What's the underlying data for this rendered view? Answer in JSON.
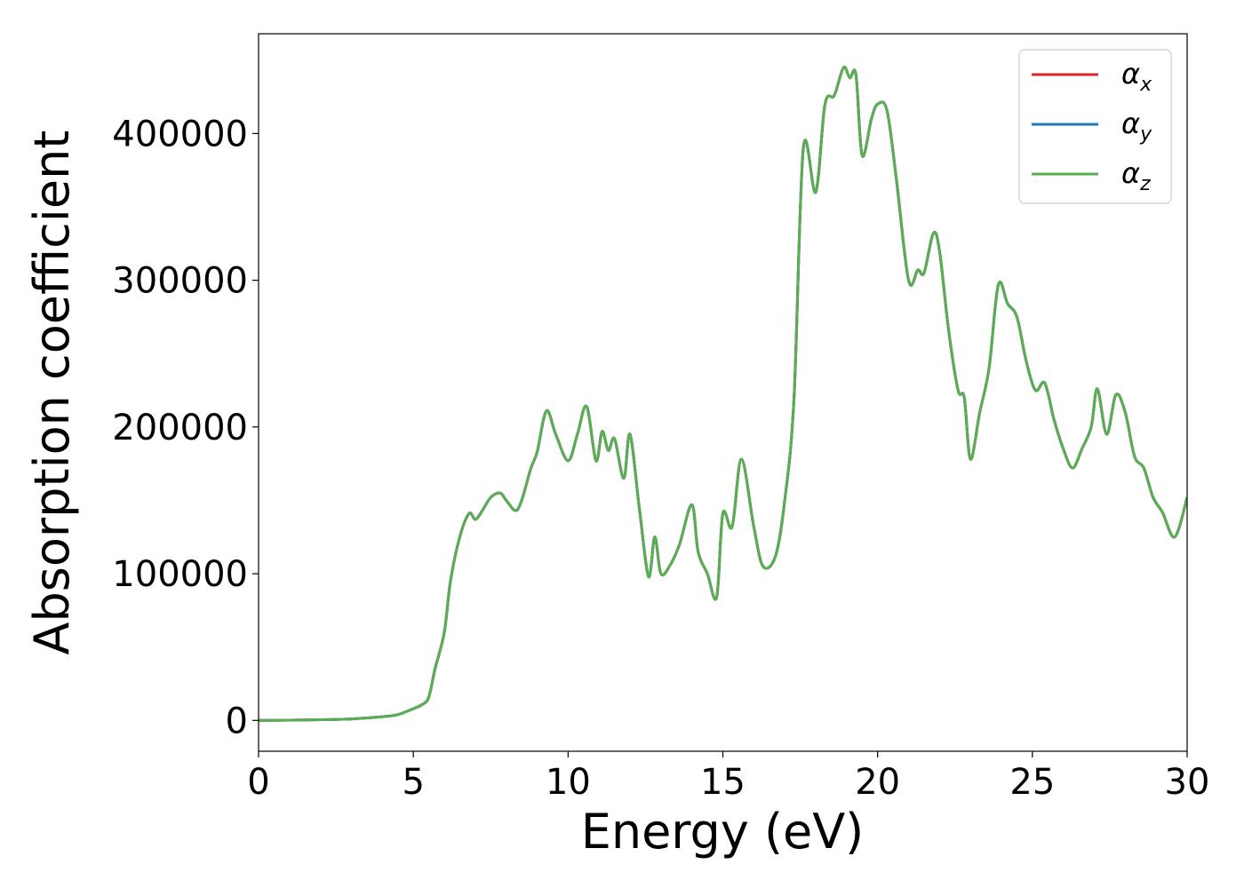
{
  "chart_data": {
    "type": "line",
    "xlabel": "Energy (eV)",
    "ylabel": "Absorption coefficient",
    "xlim": [
      0,
      30
    ],
    "ylim": [
      -21000,
      468000
    ],
    "xticks": [
      0,
      5,
      10,
      15,
      20,
      25,
      30
    ],
    "xtick_labels": [
      "0",
      "5",
      "10",
      "15",
      "20",
      "25",
      "30"
    ],
    "yticks": [
      0,
      100000,
      200000,
      300000,
      400000
    ],
    "ytick_labels": [
      "0",
      "100000",
      "200000",
      "300000",
      "400000"
    ],
    "grid": false,
    "legend_position": "top-right",
    "series": [
      {
        "name": "α_x",
        "legend_base": "α",
        "legend_sub": "x",
        "color": "#d62728",
        "x": [
          0,
          1,
          2,
          3,
          4,
          4.5,
          5,
          5.3,
          5.5,
          5.7,
          6,
          6.2,
          6.5,
          6.8,
          7,
          7.2,
          7.5,
          7.8,
          8,
          8.3,
          8.5,
          8.8,
          9,
          9.3,
          9.6,
          10,
          10.3,
          10.6,
          10.9,
          11.1,
          11.3,
          11.5,
          11.8,
          12,
          12.3,
          12.6,
          12.8,
          13,
          13.3,
          13.6,
          14,
          14.2,
          14.5,
          14.8,
          15,
          15.3,
          15.6,
          16,
          16.3,
          16.7,
          17,
          17.3,
          17.6,
          18,
          18.3,
          18.6,
          18.9,
          19.1,
          19.3,
          19.5,
          19.8,
          20,
          20.3,
          20.6,
          21,
          21.3,
          21.5,
          21.8,
          22,
          22.3,
          22.6,
          22.8,
          23,
          23.3,
          23.6,
          23.9,
          24.2,
          24.5,
          24.8,
          25.1,
          25.4,
          25.7,
          26,
          26.3,
          26.6,
          26.9,
          27.1,
          27.4,
          27.7,
          28,
          28.3,
          28.6,
          28.9,
          29.2,
          29.6,
          30
        ],
        "y": [
          0,
          200,
          500,
          1000,
          2500,
          4000,
          8000,
          11000,
          16000,
          35000,
          60000,
          95000,
          125000,
          141000,
          137000,
          142000,
          152000,
          155000,
          150000,
          143000,
          150000,
          172000,
          183000,
          211000,
          195000,
          177000,
          195000,
          214000,
          177000,
          197000,
          184000,
          192000,
          165000,
          195000,
          145000,
          98000,
          125000,
          100000,
          106000,
          120000,
          147000,
          115000,
          100000,
          84000,
          141000,
          132000,
          178000,
          132000,
          105000,
          112000,
          150000,
          220000,
          390000,
          360000,
          420000,
          426000,
          445000,
          438000,
          440000,
          385000,
          410000,
          420000,
          416000,
          370000,
          300000,
          307000,
          305000,
          332000,
          320000,
          265000,
          225000,
          220000,
          178000,
          210000,
          240000,
          297000,
          284000,
          275000,
          245000,
          225000,
          230000,
          205000,
          185000,
          172000,
          185000,
          200000,
          226000,
          195000,
          222000,
          210000,
          180000,
          172000,
          152000,
          142000,
          125000,
          152000
        ]
      },
      {
        "name": "α_y",
        "legend_base": "α",
        "legend_sub": "y",
        "color": "#1f77b4",
        "x": [
          0,
          1,
          2,
          3,
          4,
          4.5,
          5,
          5.3,
          5.5,
          5.7,
          6,
          6.2,
          6.5,
          6.8,
          7,
          7.2,
          7.5,
          7.8,
          8,
          8.3,
          8.5,
          8.8,
          9,
          9.3,
          9.6,
          10,
          10.3,
          10.6,
          10.9,
          11.1,
          11.3,
          11.5,
          11.8,
          12,
          12.3,
          12.6,
          12.8,
          13,
          13.3,
          13.6,
          14,
          14.2,
          14.5,
          14.8,
          15,
          15.3,
          15.6,
          16,
          16.3,
          16.7,
          17,
          17.3,
          17.6,
          18,
          18.3,
          18.6,
          18.9,
          19.1,
          19.3,
          19.5,
          19.8,
          20,
          20.3,
          20.6,
          21,
          21.3,
          21.5,
          21.8,
          22,
          22.3,
          22.6,
          22.8,
          23,
          23.3,
          23.6,
          23.9,
          24.2,
          24.5,
          24.8,
          25.1,
          25.4,
          25.7,
          26,
          26.3,
          26.6,
          26.9,
          27.1,
          27.4,
          27.7,
          28,
          28.3,
          28.6,
          28.9,
          29.2,
          29.6,
          30
        ],
        "y": [
          0,
          200,
          500,
          1000,
          2500,
          4000,
          8000,
          11000,
          16000,
          35000,
          60000,
          95000,
          125000,
          141000,
          137000,
          142000,
          152000,
          155000,
          150000,
          143000,
          150000,
          172000,
          183000,
          211000,
          195000,
          177000,
          195000,
          214000,
          177000,
          197000,
          184000,
          192000,
          165000,
          195000,
          145000,
          98000,
          125000,
          100000,
          106000,
          120000,
          147000,
          115000,
          100000,
          84000,
          141000,
          132000,
          178000,
          132000,
          105000,
          112000,
          150000,
          220000,
          390000,
          360000,
          420000,
          426000,
          445000,
          438000,
          440000,
          385000,
          410000,
          420000,
          416000,
          370000,
          300000,
          307000,
          305000,
          332000,
          320000,
          265000,
          225000,
          220000,
          178000,
          210000,
          240000,
          297000,
          284000,
          275000,
          245000,
          225000,
          230000,
          205000,
          185000,
          172000,
          185000,
          200000,
          226000,
          195000,
          222000,
          210000,
          180000,
          172000,
          152000,
          142000,
          125000,
          152000
        ]
      },
      {
        "name": "α_z",
        "legend_base": "α",
        "legend_sub": "z",
        "color": "#5aad51",
        "x": [
          0,
          1,
          2,
          3,
          4,
          4.5,
          5,
          5.3,
          5.5,
          5.7,
          6,
          6.2,
          6.5,
          6.8,
          7,
          7.2,
          7.5,
          7.8,
          8,
          8.3,
          8.5,
          8.8,
          9,
          9.3,
          9.6,
          10,
          10.3,
          10.6,
          10.9,
          11.1,
          11.3,
          11.5,
          11.8,
          12,
          12.3,
          12.6,
          12.8,
          13,
          13.3,
          13.6,
          14,
          14.2,
          14.5,
          14.8,
          15,
          15.3,
          15.6,
          16,
          16.3,
          16.7,
          17,
          17.3,
          17.6,
          18,
          18.3,
          18.6,
          18.9,
          19.1,
          19.3,
          19.5,
          19.8,
          20,
          20.3,
          20.6,
          21,
          21.3,
          21.5,
          21.8,
          22,
          22.3,
          22.6,
          22.8,
          23,
          23.3,
          23.6,
          23.9,
          24.2,
          24.5,
          24.8,
          25.1,
          25.4,
          25.7,
          26,
          26.3,
          26.6,
          26.9,
          27.1,
          27.4,
          27.7,
          28,
          28.3,
          28.6,
          28.9,
          29.2,
          29.6,
          30
        ],
        "y": [
          0,
          200,
          500,
          1000,
          2500,
          4000,
          8000,
          11000,
          16000,
          35000,
          60000,
          95000,
          125000,
          141000,
          137000,
          142000,
          152000,
          155000,
          150000,
          143000,
          150000,
          172000,
          183000,
          211000,
          195000,
          177000,
          195000,
          214000,
          177000,
          197000,
          184000,
          192000,
          165000,
          195000,
          145000,
          98000,
          125000,
          100000,
          106000,
          120000,
          147000,
          115000,
          100000,
          84000,
          141000,
          132000,
          178000,
          132000,
          105000,
          112000,
          150000,
          220000,
          390000,
          360000,
          420000,
          426000,
          445000,
          438000,
          440000,
          385000,
          410000,
          420000,
          416000,
          370000,
          300000,
          307000,
          305000,
          332000,
          320000,
          265000,
          225000,
          220000,
          178000,
          210000,
          240000,
          297000,
          284000,
          275000,
          245000,
          225000,
          230000,
          205000,
          185000,
          172000,
          185000,
          200000,
          226000,
          195000,
          222000,
          210000,
          180000,
          172000,
          152000,
          142000,
          125000,
          152000
        ]
      }
    ]
  }
}
